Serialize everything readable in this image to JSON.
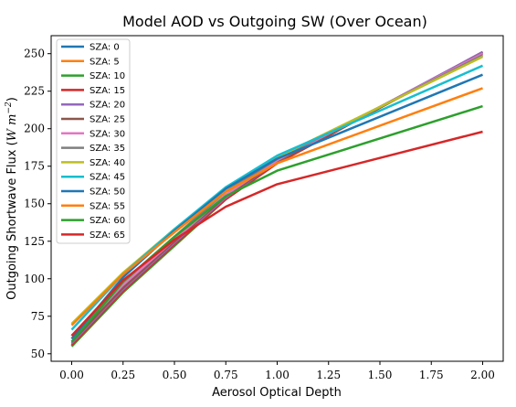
{
  "chart_data": {
    "type": "line",
    "title": "Model AOD vs Outgoing SW (Over Ocean)",
    "xlabel": "Aerosol Optical Depth",
    "ylabel_text": "Outgoing Shortwave Flux (",
    "ylabel_math": "W m",
    "ylabel_exp": "−2",
    "ylabel_close": ")",
    "x": [
      0,
      0.25,
      0.5,
      0.75,
      1.0,
      2.0
    ],
    "xlim": [
      -0.1,
      2.1
    ],
    "ylim": [
      45,
      262
    ],
    "xticks": [
      0,
      0.25,
      0.5,
      0.75,
      1.0,
      1.25,
      1.5,
      1.75,
      2.0
    ],
    "xtick_labels": [
      "0.00",
      "0.25",
      "0.50",
      "0.75",
      "1.00",
      "1.25",
      "1.50",
      "1.75",
      "2.00"
    ],
    "yticks": [
      50,
      75,
      100,
      125,
      150,
      175,
      200,
      225,
      250
    ],
    "ytick_labels": [
      "50",
      "75",
      "100",
      "125",
      "150",
      "175",
      "200",
      "225",
      "250"
    ],
    "legend_position": "top-left",
    "grid": false,
    "series": [
      {
        "name": "SZA: 0",
        "color": "#1f77b4",
        "values": [
          55,
          91,
          122,
          153,
          177,
          251
        ]
      },
      {
        "name": "SZA: 5",
        "color": "#ff7f0e",
        "values": [
          55,
          91,
          122,
          153,
          177,
          251
        ]
      },
      {
        "name": "SZA: 10",
        "color": "#2ca02c",
        "values": [
          55,
          91,
          122,
          153,
          177,
          251
        ]
      },
      {
        "name": "SZA: 15",
        "color": "#d62728",
        "values": [
          56,
          92,
          123,
          153,
          177,
          251
        ]
      },
      {
        "name": "SZA: 20",
        "color": "#9467bd",
        "values": [
          57,
          93,
          124,
          154,
          178,
          251
        ]
      },
      {
        "name": "SZA: 25",
        "color": "#8c564b",
        "values": [
          58,
          94,
          125,
          155,
          178,
          250
        ]
      },
      {
        "name": "SZA: 30",
        "color": "#e377c2",
        "values": [
          60,
          96,
          126,
          156,
          179,
          250
        ]
      },
      {
        "name": "SZA: 35",
        "color": "#7f7f7f",
        "values": [
          62,
          98,
          128,
          158,
          180,
          249
        ]
      },
      {
        "name": "SZA: 40",
        "color": "#bcbd22",
        "values": [
          70,
          104,
          133,
          160,
          181,
          248
        ]
      },
      {
        "name": "SZA: 45",
        "color": "#17becf",
        "values": [
          66,
          103,
          133,
          161,
          182,
          242
        ]
      },
      {
        "name": "SZA: 50",
        "color": "#1f77b4",
        "values": [
          60,
          101,
          132,
          160,
          180,
          236
        ]
      },
      {
        "name": "SZA: 55",
        "color": "#ff7f0e",
        "values": [
          69,
          103,
          131,
          158,
          177,
          227
        ]
      },
      {
        "name": "SZA: 60",
        "color": "#2ca02c",
        "values": [
          58,
          98,
          128,
          155,
          172,
          215
        ]
      },
      {
        "name": "SZA: 65",
        "color": "#d62728",
        "values": [
          62,
          99,
          126,
          148,
          163,
          198
        ]
      }
    ]
  }
}
